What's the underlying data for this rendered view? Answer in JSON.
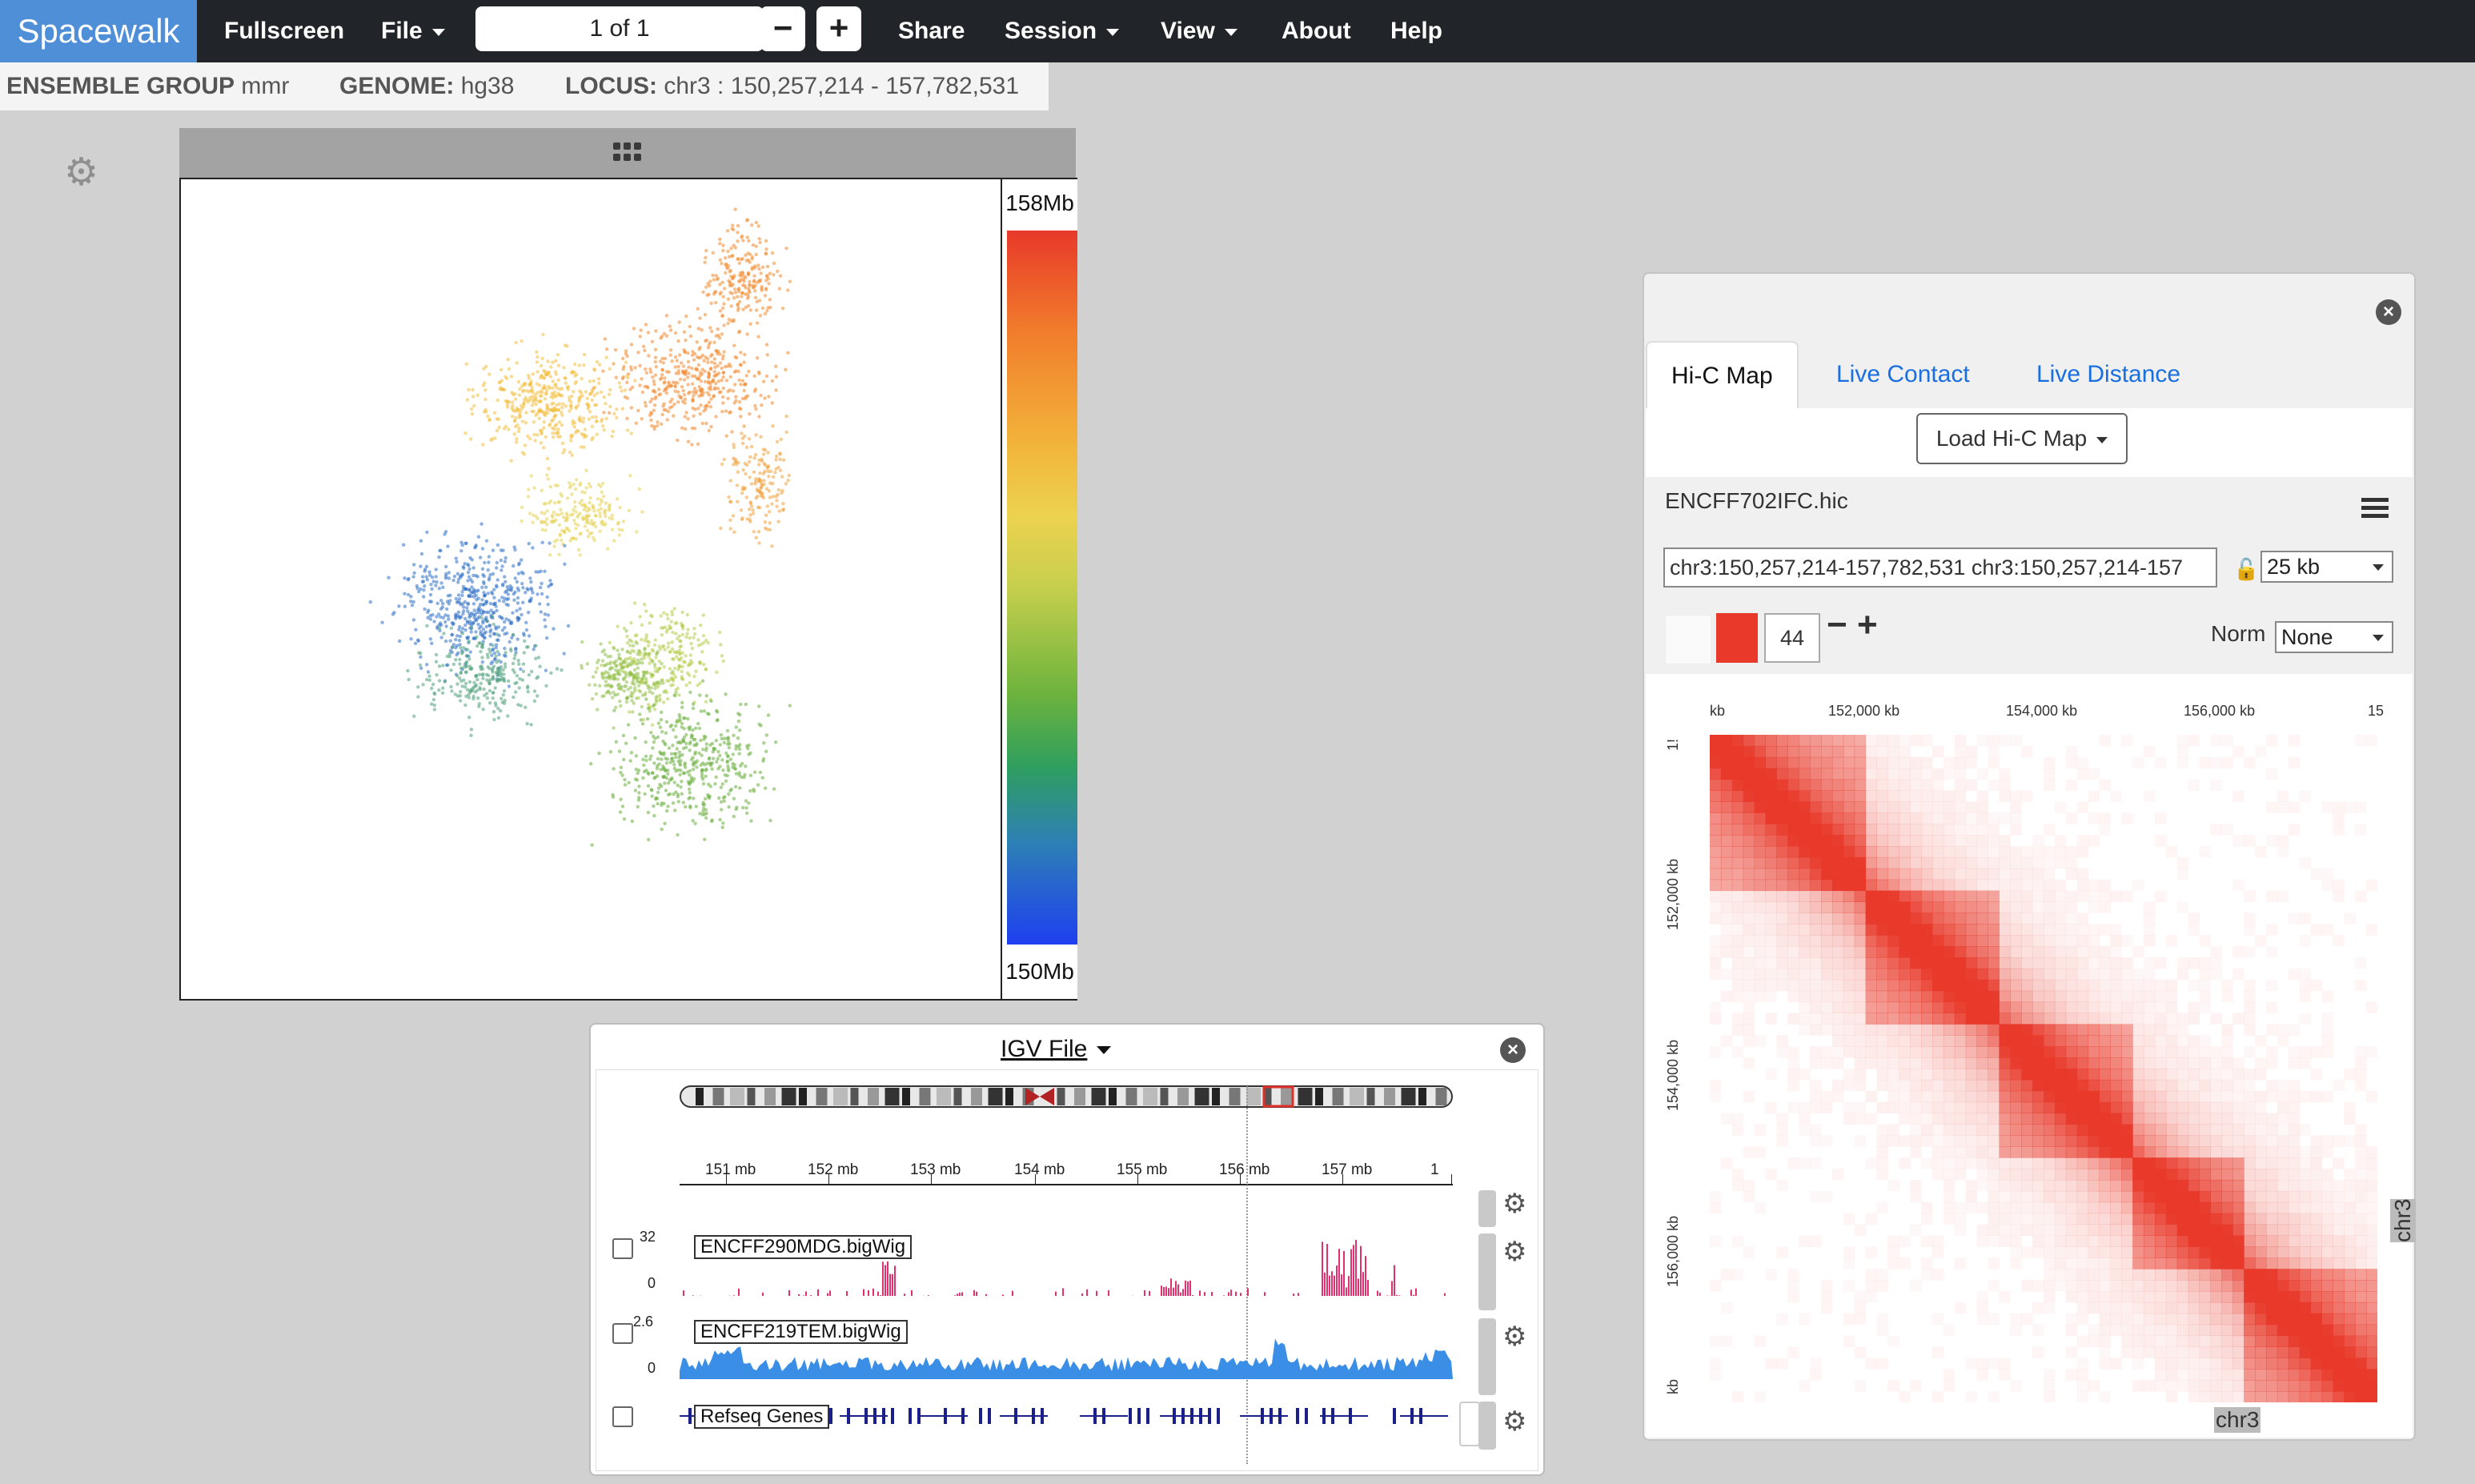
{
  "navbar": {
    "brand": "Spacewalk",
    "fullscreen": "Fullscreen",
    "file": "File",
    "pager_value": "1 of 1",
    "minus": "−",
    "plus": "+",
    "share": "Share",
    "session": "Session",
    "view": "View",
    "about": "About",
    "help": "Help"
  },
  "info": {
    "ensemble_label": "ENSEMBLE GROUP",
    "ensemble_value": "mmr",
    "genome_label": "GENOME:",
    "genome_value": "hg38",
    "locus_label": "LOCUS:",
    "locus_value": "chr3 : 150,257,214 - 157,782,531"
  },
  "viewer3d": {
    "scale_top": "158Mb",
    "scale_bottom": "150Mb",
    "colors": [
      "#e8392a",
      "#f17c2b",
      "#ecd24f",
      "#6cb33d",
      "#2d7fb7",
      "#1f3ff0"
    ]
  },
  "igv": {
    "title": "IGV File",
    "ruler": [
      "151 mb",
      "152 mb",
      "153 mb",
      "154 mb",
      "155 mb",
      "156 mb",
      "157 mb",
      "1"
    ],
    "tracks": [
      {
        "name": "ENCFF290MDG.bigWig",
        "max": "32",
        "min": "0",
        "color": "#e0306e"
      },
      {
        "name": "ENCFF219TEM.bigWig",
        "max": "2.6",
        "min": "0",
        "color": "#3a8ee6"
      },
      {
        "name": "Refseq Genes",
        "color": "#1a1f8a"
      }
    ]
  },
  "hic": {
    "tabs": [
      "Hi-C Map",
      "Live Contact",
      "Live Distance"
    ],
    "load_button": "Load Hi-C Map",
    "file_name": "ENCFF702IFC.hic",
    "locus": "chr3:150,257,214-157,782,531 chr3:150,257,214-157",
    "resolution": "25 kb",
    "color_value": "44",
    "norm_label": "Norm",
    "norm_value": "None",
    "x_ticks": [
      "kb",
      "152,000 kb",
      "154,000 kb",
      "156,000 kb",
      "15"
    ],
    "y_ticks": [
      "1!",
      "152,000 kb",
      "154,000 kb",
      "156,000 kb",
      "kb"
    ],
    "chr_x": "chr3",
    "chr_y": "chr3",
    "map_color": "#e8392a"
  }
}
